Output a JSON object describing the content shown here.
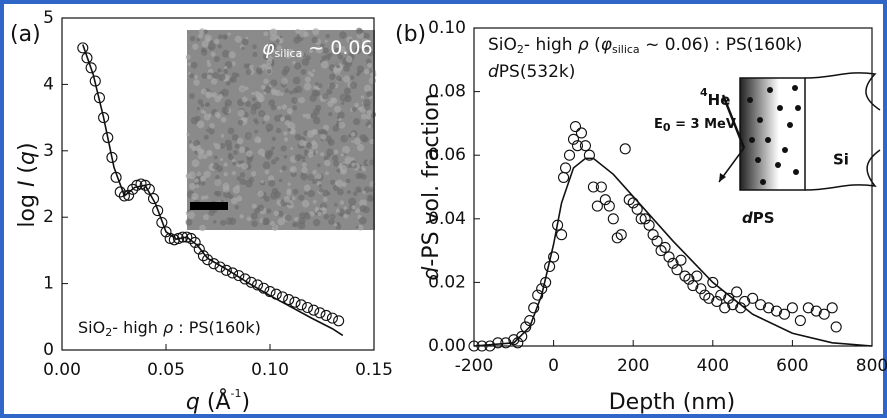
{
  "chart_data": [
    {
      "type": "scatter",
      "panel_label": "(a)",
      "x_label": [
        "q",
        " (Å",
        "-1",
        ")"
      ],
      "y_label": [
        "log ",
        "I",
        " (",
        "q",
        ")"
      ],
      "annotation": [
        "SiO",
        "2",
        "- high ",
        "ρ",
        " : PS(160k)"
      ],
      "inset_label": [
        "φ",
        "silica",
        " ~ 0.06"
      ],
      "xlim": [
        0,
        0.15
      ],
      "ylim": [
        0,
        5
      ],
      "xticks": [
        {
          "value": 0,
          "label": "0.00"
        },
        {
          "value": 0.05,
          "label": "0.05"
        },
        {
          "value": 0.1,
          "label": "0.10"
        },
        {
          "value": 0.15,
          "label": "0.15"
        }
      ],
      "yticks": [
        0,
        1,
        2,
        3,
        4,
        5
      ],
      "series": [
        {
          "style": "markers",
          "color": "#111111",
          "x": [
            0.01,
            0.012,
            0.014,
            0.016,
            0.018,
            0.02,
            0.022,
            0.024,
            0.026,
            0.028,
            0.03,
            0.032,
            0.034,
            0.036,
            0.038,
            0.04,
            0.042,
            0.044,
            0.046,
            0.048,
            0.05,
            0.052,
            0.054,
            0.056,
            0.058,
            0.06,
            0.062,
            0.064,
            0.066,
            0.068,
            0.07,
            0.073,
            0.076,
            0.079,
            0.082,
            0.085,
            0.088,
            0.091,
            0.094,
            0.097,
            0.1,
            0.103,
            0.106,
            0.109,
            0.112,
            0.115,
            0.118,
            0.121,
            0.124,
            0.127,
            0.13,
            0.133
          ],
          "values": [
            4.55,
            4.4,
            4.25,
            4.05,
            3.8,
            3.5,
            3.2,
            2.9,
            2.6,
            2.38,
            2.32,
            2.33,
            2.42,
            2.48,
            2.5,
            2.48,
            2.42,
            2.28,
            2.1,
            1.92,
            1.78,
            1.68,
            1.66,
            1.68,
            1.7,
            1.7,
            1.68,
            1.62,
            1.52,
            1.42,
            1.36,
            1.3,
            1.25,
            1.2,
            1.16,
            1.12,
            1.07,
            1.02,
            0.98,
            0.93,
            0.88,
            0.84,
            0.8,
            0.76,
            0.72,
            0.68,
            0.64,
            0.6,
            0.56,
            0.52,
            0.48,
            0.44
          ]
        },
        {
          "style": "line",
          "color": "#111111",
          "x": [
            0.01,
            0.015,
            0.02,
            0.025,
            0.03,
            0.035,
            0.04,
            0.045,
            0.05,
            0.055,
            0.06,
            0.065,
            0.07,
            0.08,
            0.09,
            0.1,
            0.11,
            0.12,
            0.13,
            0.135
          ],
          "values": [
            4.6,
            4.15,
            3.5,
            2.75,
            2.32,
            2.45,
            2.48,
            2.2,
            1.78,
            1.67,
            1.7,
            1.58,
            1.38,
            1.2,
            1.0,
            0.82,
            0.65,
            0.48,
            0.32,
            0.22
          ]
        }
      ]
    },
    {
      "type": "scatter",
      "panel_label": "(b)",
      "x_label": "Depth (nm)",
      "y_label": [
        "d",
        "-PS vol. fraction"
      ],
      "annotation": [
        "SiO",
        "2",
        "- high ",
        "ρ",
        " (",
        "φ",
        "silica",
        " ~ 0.06) : PS(160k)"
      ],
      "annotation2": [
        "d",
        "PS(532k)"
      ],
      "schematic": {
        "ion": [
          "4",
          "He"
        ],
        "energy": [
          "E",
          "0",
          " = 3 MeV"
        ],
        "substrate": "Si",
        "film": [
          "d",
          "PS"
        ]
      },
      "xlim": [
        -200,
        800
      ],
      "ylim": [
        0,
        0.1
      ],
      "xticks": [
        -200,
        0,
        200,
        400,
        600,
        800
      ],
      "yticks": [
        {
          "value": 0,
          "label": "0.00"
        },
        {
          "value": 0.02,
          "label": "0.02"
        },
        {
          "value": 0.04,
          "label": "0.04"
        },
        {
          "value": 0.06,
          "label": "0.06"
        },
        {
          "value": 0.08,
          "label": "0.08"
        },
        {
          "value": 0.1,
          "label": "0.10"
        }
      ],
      "series": [
        {
          "style": "markers",
          "color": "#111111",
          "x": [
            -200,
            -180,
            -160,
            -140,
            -120,
            -100,
            -90,
            -80,
            -70,
            -60,
            -50,
            -40,
            -30,
            -20,
            -10,
            0,
            10,
            20,
            25,
            30,
            40,
            50,
            55,
            60,
            70,
            80,
            90,
            100,
            110,
            120,
            130,
            140,
            150,
            160,
            170,
            180,
            190,
            200,
            210,
            220,
            230,
            240,
            250,
            260,
            270,
            280,
            290,
            300,
            310,
            320,
            330,
            340,
            350,
            360,
            370,
            380,
            390,
            400,
            410,
            420,
            430,
            440,
            450,
            460,
            470,
            480,
            500,
            520,
            540,
            560,
            580,
            600,
            620,
            640,
            660,
            680,
            700,
            710
          ],
          "values": [
            0.0,
            0.0,
            0.0,
            0.001,
            0.001,
            0.002,
            0.001,
            0.003,
            0.006,
            0.008,
            0.012,
            0.016,
            0.018,
            0.02,
            0.025,
            0.028,
            0.038,
            0.035,
            0.053,
            0.056,
            0.06,
            0.065,
            0.069,
            0.063,
            0.067,
            0.063,
            0.06,
            0.05,
            0.044,
            0.05,
            0.046,
            0.044,
            0.04,
            0.034,
            0.035,
            0.062,
            0.046,
            0.045,
            0.043,
            0.04,
            0.04,
            0.038,
            0.035,
            0.033,
            0.03,
            0.031,
            0.028,
            0.026,
            0.024,
            0.027,
            0.022,
            0.021,
            0.019,
            0.022,
            0.018,
            0.016,
            0.015,
            0.02,
            0.014,
            0.016,
            0.012,
            0.015,
            0.013,
            0.017,
            0.012,
            0.014,
            0.015,
            0.013,
            0.012,
            0.011,
            0.01,
            0.012,
            0.008,
            0.012,
            0.011,
            0.01,
            0.012,
            0.006
          ]
        },
        {
          "style": "line",
          "color": "#111111",
          "x": [
            -200,
            -100,
            -60,
            -30,
            0,
            20,
            50,
            80,
            100,
            150,
            200,
            300,
            400,
            500,
            600,
            700,
            800
          ],
          "values": [
            0,
            0.001,
            0.006,
            0.016,
            0.032,
            0.045,
            0.056,
            0.059,
            0.059,
            0.054,
            0.047,
            0.033,
            0.02,
            0.01,
            0.004,
            0.001,
            0
          ]
        }
      ]
    }
  ]
}
